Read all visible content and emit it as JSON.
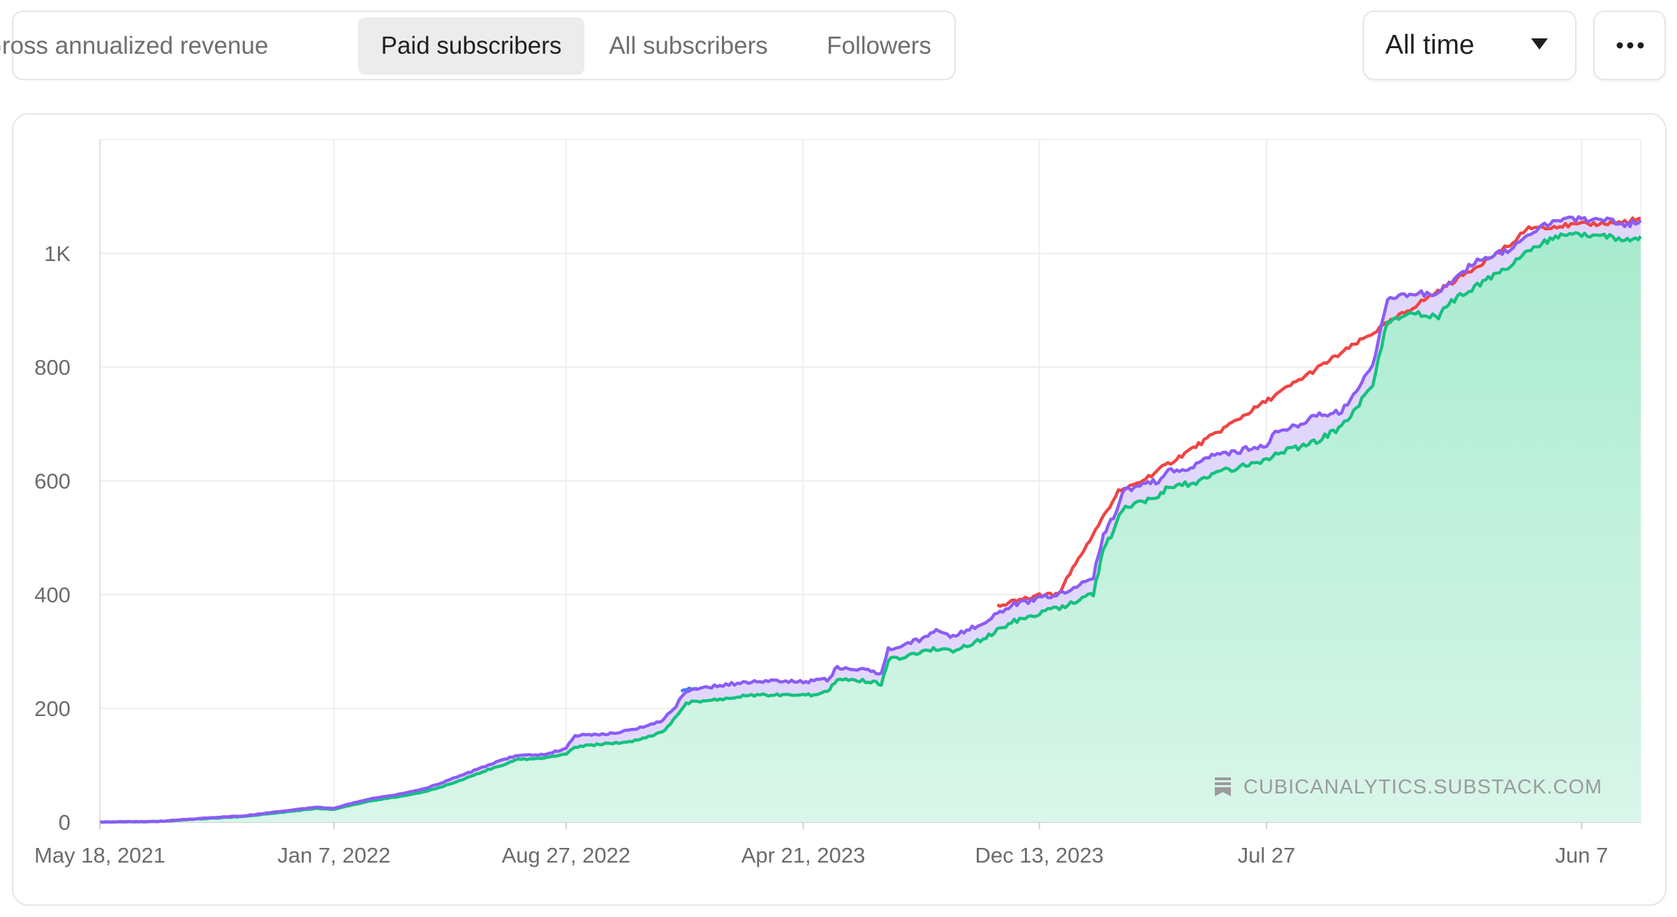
{
  "tabs": [
    {
      "label": "Gross annualized revenue",
      "active": false
    },
    {
      "label": "Paid subscribers",
      "active": true
    },
    {
      "label": "All subscribers",
      "active": false
    },
    {
      "label": "Followers",
      "active": false
    }
  ],
  "range_selector": {
    "selected": "All time",
    "icon": "caret-down-icon"
  },
  "more_button": {
    "icon": "more-horizontal-icon"
  },
  "watermark": {
    "text": "CUBICANALYTICS.SUBSTACK.COM",
    "icon": "substack-logo-icon"
  },
  "colors": {
    "purple_line": "#8b5cf6",
    "purple_fill": "#ded3fb",
    "green_line": "#14c27e",
    "green_fill_top": "#a8ebcf",
    "green_fill_bottom": "#d9f6ea",
    "red_line": "#ef4444",
    "blue_line": "#3b82f6"
  },
  "chart_data": {
    "type": "area",
    "title": "",
    "xlabel": "",
    "ylabel": "",
    "x_tick_labels": [
      "May 18, 2021",
      "Jan 7, 2022",
      "Aug 27, 2022",
      "Apr 21, 2023",
      "Dec 13, 2023",
      "Jul 27",
      "Jun 7"
    ],
    "y_tick_labels": [
      "0",
      "200",
      "400",
      "600",
      "800",
      "1K"
    ],
    "y_tick_values": [
      0,
      200,
      400,
      600,
      800,
      1000
    ],
    "ylim": [
      0,
      1200
    ],
    "xlim": [
      "2021-05-18",
      "2025-08-05"
    ],
    "grid": true,
    "legend": "none",
    "series": [
      {
        "color_key": "purple_line",
        "points": [
          [
            "2021-05-18",
            0
          ],
          [
            "2021-07-15",
            1
          ],
          [
            "2021-08-30",
            7
          ],
          [
            "2021-10-10",
            11
          ],
          [
            "2021-11-15",
            19
          ],
          [
            "2021-12-20",
            26
          ],
          [
            "2022-01-07",
            24
          ],
          [
            "2022-01-25",
            33
          ],
          [
            "2022-02-15",
            42
          ],
          [
            "2022-03-10",
            48
          ],
          [
            "2022-04-10",
            60
          ],
          [
            "2022-05-10",
            79
          ],
          [
            "2022-06-10",
            100
          ],
          [
            "2022-07-10",
            118
          ],
          [
            "2022-08-05",
            118
          ],
          [
            "2022-08-27",
            130
          ],
          [
            "2022-09-05",
            152
          ],
          [
            "2022-10-05",
            155
          ],
          [
            "2022-11-01",
            162
          ],
          [
            "2022-12-01",
            178
          ],
          [
            "2022-12-15",
            205
          ],
          [
            "2022-12-25",
            230
          ],
          [
            "2023-01-25",
            240
          ],
          [
            "2023-02-20",
            245
          ],
          [
            "2023-03-20",
            248
          ],
          [
            "2023-04-21",
            247
          ],
          [
            "2023-05-15",
            250
          ],
          [
            "2023-05-25",
            272
          ],
          [
            "2023-06-25",
            268
          ],
          [
            "2023-07-08",
            262
          ],
          [
            "2023-07-15",
            305
          ],
          [
            "2023-08-15",
            320
          ],
          [
            "2023-09-01",
            338
          ],
          [
            "2023-09-15",
            325
          ],
          [
            "2023-10-15",
            348
          ],
          [
            "2023-11-15",
            382
          ],
          [
            "2023-12-13",
            393
          ],
          [
            "2024-01-05",
            405
          ],
          [
            "2024-01-25",
            420
          ],
          [
            "2024-02-05",
            432
          ],
          [
            "2024-02-15",
            508
          ],
          [
            "2024-02-25",
            535
          ],
          [
            "2024-03-05",
            580
          ],
          [
            "2024-03-20",
            590
          ],
          [
            "2024-04-10",
            600
          ],
          [
            "2024-04-20",
            618
          ],
          [
            "2024-05-15",
            625
          ],
          [
            "2024-06-05",
            645
          ],
          [
            "2024-06-25",
            650
          ],
          [
            "2024-07-15",
            660
          ],
          [
            "2024-07-27",
            663
          ],
          [
            "2024-08-05",
            688
          ],
          [
            "2024-08-25",
            695
          ],
          [
            "2024-09-15",
            715
          ],
          [
            "2024-10-10",
            722
          ],
          [
            "2024-10-25",
            760
          ],
          [
            "2024-11-10",
            800
          ],
          [
            "2024-11-25",
            920
          ],
          [
            "2024-12-20",
            930
          ],
          [
            "2025-01-15",
            928
          ],
          [
            "2025-01-25",
            945
          ],
          [
            "2025-02-20",
            985
          ],
          [
            "2025-03-25",
            1005
          ],
          [
            "2025-04-20",
            1040
          ],
          [
            "2025-05-20",
            1062
          ],
          [
            "2025-06-07",
            1060
          ],
          [
            "2025-07-05",
            1058
          ],
          [
            "2025-07-20",
            1048
          ],
          [
            "2025-08-05",
            1058
          ]
        ]
      },
      {
        "color_key": "green_line",
        "points": [
          [
            "2021-05-18",
            0
          ],
          [
            "2021-07-15",
            1
          ],
          [
            "2021-08-30",
            6
          ],
          [
            "2021-10-10",
            10
          ],
          [
            "2021-11-15",
            17
          ],
          [
            "2021-12-20",
            24
          ],
          [
            "2022-01-07",
            22
          ],
          [
            "2022-01-25",
            30
          ],
          [
            "2022-02-15",
            38
          ],
          [
            "2022-03-10",
            44
          ],
          [
            "2022-04-10",
            54
          ],
          [
            "2022-05-10",
            71
          ],
          [
            "2022-06-10",
            92
          ],
          [
            "2022-07-10",
            110
          ],
          [
            "2022-08-05",
            112
          ],
          [
            "2022-08-27",
            120
          ],
          [
            "2022-09-05",
            132
          ],
          [
            "2022-10-05",
            138
          ],
          [
            "2022-11-01",
            142
          ],
          [
            "2022-12-01",
            158
          ],
          [
            "2022-12-15",
            185
          ],
          [
            "2022-12-25",
            210
          ],
          [
            "2023-01-25",
            215
          ],
          [
            "2023-02-20",
            222
          ],
          [
            "2023-03-20",
            224
          ],
          [
            "2023-04-21",
            222
          ],
          [
            "2023-05-15",
            228
          ],
          [
            "2023-05-25",
            250
          ],
          [
            "2023-06-25",
            248
          ],
          [
            "2023-07-08",
            242
          ],
          [
            "2023-07-15",
            285
          ],
          [
            "2023-08-15",
            296
          ],
          [
            "2023-09-01",
            305
          ],
          [
            "2023-09-15",
            300
          ],
          [
            "2023-10-15",
            320
          ],
          [
            "2023-11-15",
            352
          ],
          [
            "2023-12-13",
            368
          ],
          [
            "2024-01-05",
            378
          ],
          [
            "2024-01-25",
            392
          ],
          [
            "2024-02-05",
            402
          ],
          [
            "2024-02-15",
            482
          ],
          [
            "2024-02-25",
            510
          ],
          [
            "2024-03-05",
            552
          ],
          [
            "2024-03-20",
            560
          ],
          [
            "2024-04-10",
            575
          ],
          [
            "2024-04-20",
            590
          ],
          [
            "2024-05-15",
            596
          ],
          [
            "2024-06-05",
            614
          ],
          [
            "2024-06-25",
            622
          ],
          [
            "2024-07-15",
            630
          ],
          [
            "2024-07-27",
            635
          ],
          [
            "2024-08-05",
            650
          ],
          [
            "2024-08-25",
            658
          ],
          [
            "2024-09-15",
            670
          ],
          [
            "2024-10-10",
            695
          ],
          [
            "2024-10-25",
            728
          ],
          [
            "2024-11-10",
            770
          ],
          [
            "2024-11-25",
            880
          ],
          [
            "2024-12-20",
            895
          ],
          [
            "2025-01-15",
            888
          ],
          [
            "2025-01-25",
            912
          ],
          [
            "2025-02-20",
            940
          ],
          [
            "2025-03-25",
            975
          ],
          [
            "2025-04-20",
            1010
          ],
          [
            "2025-05-20",
            1035
          ],
          [
            "2025-06-07",
            1032
          ],
          [
            "2025-07-05",
            1028
          ],
          [
            "2025-07-20",
            1020
          ],
          [
            "2025-08-05",
            1030
          ]
        ]
      },
      {
        "color_key": "red_line",
        "points": [
          [
            "2023-11-01",
            380
          ],
          [
            "2023-12-13",
            398
          ],
          [
            "2024-01-01",
            402
          ],
          [
            "2024-03-01",
            582
          ],
          [
            "2024-03-20",
            595
          ],
          [
            "2025-03-25",
            1012
          ],
          [
            "2025-04-15",
            1045
          ],
          [
            "2025-07-20",
            1055
          ],
          [
            "2025-08-05",
            1062
          ]
        ]
      },
      {
        "color_key": "blue_line",
        "points": [
          [
            "2022-12-20",
            230
          ],
          [
            "2023-01-05",
            236
          ]
        ]
      }
    ]
  }
}
